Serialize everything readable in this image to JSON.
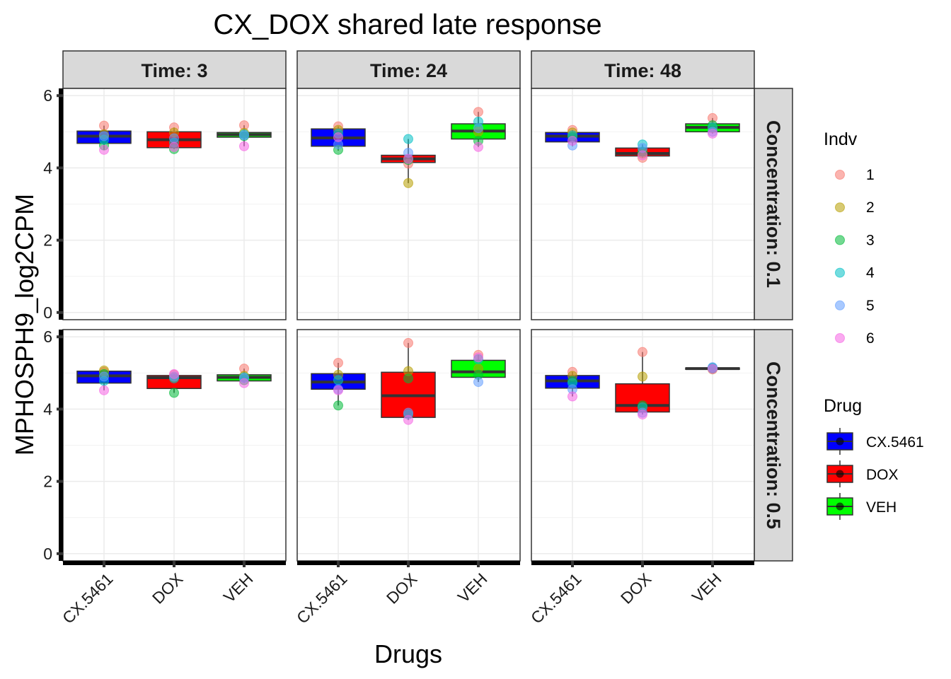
{
  "chart_data": {
    "type": "box",
    "title": "CX_DOX shared late response",
    "xlabel": "Drugs",
    "ylabel": "MPHOSPH9_log2CPM",
    "ylim": [
      -0.2,
      6.2
    ],
    "yticks": [
      0,
      2,
      4,
      6
    ],
    "categories": [
      "CX.5461",
      "DOX",
      "VEH"
    ],
    "grid": true,
    "facet_cols": {
      "name": "Time",
      "labels": [
        "Time: 3",
        "Time: 24",
        "Time: 48"
      ]
    },
    "facet_rows": {
      "name": "Concentration",
      "labels": [
        "Concentration: 0.1",
        "Concentration: 0.5"
      ]
    },
    "drug_colors": {
      "CX.5461": "#0000FF",
      "DOX": "#FF0000",
      "VEH": "#00FF00"
    },
    "indv_colors": {
      "1": "#F8766D",
      "2": "#B79F00",
      "3": "#00BA38",
      "4": "#00BFC4",
      "5": "#619CFF",
      "6": "#F564E3"
    },
    "panels": [
      {
        "row": 0,
        "col": 0,
        "boxes": [
          {
            "drug": "CX.5461",
            "whisker_low": 4.5,
            "q1": 4.68,
            "median": 4.88,
            "q3": 5.02,
            "whisker_high": 5.17,
            "points": {
              "1": 5.17,
              "2": 4.93,
              "3": 4.62,
              "4": 4.78,
              "5": 4.88,
              "6": 4.5
            }
          },
          {
            "drug": "DOX",
            "whisker_low": 4.52,
            "q1": 4.56,
            "median": 4.78,
            "q3": 5.0,
            "whisker_high": 5.12,
            "points": {
              "1": 5.12,
              "2": 4.98,
              "3": 4.52,
              "4": 4.7,
              "5": 4.82,
              "6": 4.58
            }
          },
          {
            "drug": "VEH",
            "whisker_low": 4.6,
            "q1": 4.85,
            "median": 4.92,
            "q3": 4.98,
            "whisker_high": 5.18,
            "points": {
              "1": 5.18,
              "2": 4.97,
              "3": 4.88,
              "4": 4.93,
              "5": 4.9,
              "6": 4.6
            }
          }
        ]
      },
      {
        "row": 0,
        "col": 1,
        "boxes": [
          {
            "drug": "CX.5461",
            "whisker_low": 4.48,
            "q1": 4.6,
            "median": 4.83,
            "q3": 5.08,
            "whisker_high": 5.15,
            "points": {
              "1": 5.15,
              "2": 5.05,
              "3": 4.5,
              "4": 4.95,
              "5": 4.65,
              "6": 4.85
            }
          },
          {
            "drug": "DOX",
            "whisker_low": 3.58,
            "q1": 4.15,
            "median": 4.25,
            "q3": 4.35,
            "whisker_high": 4.8,
            "points": {
              "1": 4.12,
              "2": 3.58,
              "3": 4.22,
              "4": 4.8,
              "5": 4.42,
              "6": 4.25
            }
          },
          {
            "drug": "VEH",
            "whisker_low": 4.58,
            "q1": 4.8,
            "median": 5.02,
            "q3": 5.22,
            "whisker_high": 5.55,
            "points": {
              "1": 5.55,
              "2": 5.0,
              "3": 4.75,
              "4": 5.28,
              "5": 5.1,
              "6": 4.58
            }
          }
        ]
      },
      {
        "row": 0,
        "col": 2,
        "boxes": [
          {
            "drug": "CX.5461",
            "whisker_low": 4.6,
            "q1": 4.72,
            "median": 4.88,
            "q3": 4.98,
            "whisker_high": 5.05,
            "points": {
              "1": 5.05,
              "2": 4.98,
              "3": 4.85,
              "4": 4.9,
              "5": 4.62,
              "6": 4.75
            }
          },
          {
            "drug": "DOX",
            "whisker_low": 4.28,
            "q1": 4.33,
            "median": 4.4,
            "q3": 4.55,
            "whisker_high": 4.65,
            "points": {
              "1": 4.28,
              "2": 4.4,
              "3": 4.45,
              "4": 4.65,
              "5": 4.55,
              "6": 4.35
            }
          },
          {
            "drug": "VEH",
            "whisker_low": 4.95,
            "q1": 5.0,
            "median": 5.12,
            "q3": 5.22,
            "whisker_high": 5.38,
            "points": {
              "1": 5.38,
              "2": 5.1,
              "3": 5.18,
              "4": 5.12,
              "5": 5.0,
              "6": 4.95
            }
          }
        ]
      },
      {
        "row": 1,
        "col": 0,
        "boxes": [
          {
            "drug": "CX.5461",
            "whisker_low": 4.52,
            "q1": 4.72,
            "median": 4.92,
            "q3": 5.05,
            "whisker_high": 5.07,
            "points": {
              "1": 5.03,
              "2": 5.07,
              "3": 4.97,
              "4": 4.78,
              "5": 4.9,
              "6": 4.52
            }
          },
          {
            "drug": "DOX",
            "whisker_low": 4.45,
            "q1": 4.57,
            "median": 4.87,
            "q3": 4.93,
            "whisker_high": 4.97,
            "points": {
              "1": 4.95,
              "2": 4.88,
              "3": 4.45,
              "4": 4.85,
              "5": 4.9,
              "6": 4.97
            }
          },
          {
            "drug": "VEH",
            "whisker_low": 4.72,
            "q1": 4.78,
            "median": 4.88,
            "q3": 4.95,
            "whisker_high": 5.12,
            "points": {
              "1": 5.12,
              "2": 4.92,
              "3": 4.8,
              "4": 4.88,
              "5": 4.85,
              "6": 4.72
            }
          }
        ]
      },
      {
        "row": 1,
        "col": 1,
        "boxes": [
          {
            "drug": "CX.5461",
            "whisker_low": 4.1,
            "q1": 4.55,
            "median": 4.75,
            "q3": 4.98,
            "whisker_high": 5.28,
            "points": {
              "1": 5.28,
              "2": 4.95,
              "3": 4.1,
              "4": 4.8,
              "5": 4.55,
              "6": 4.52
            }
          },
          {
            "drug": "DOX",
            "whisker_low": 3.7,
            "q1": 3.77,
            "median": 4.37,
            "q3": 5.02,
            "whisker_high": 5.83,
            "points": {
              "1": 5.83,
              "2": 5.05,
              "3": 4.85,
              "4": 3.85,
              "5": 3.9,
              "6": 3.7
            }
          },
          {
            "drug": "VEH",
            "whisker_low": 4.75,
            "q1": 4.88,
            "median": 5.03,
            "q3": 5.35,
            "whisker_high": 5.5,
            "points": {
              "1": 5.5,
              "2": 5.12,
              "3": 4.95,
              "4": 5.38,
              "5": 4.75,
              "6": 5.43
            }
          }
        ]
      },
      {
        "row": 1,
        "col": 2,
        "boxes": [
          {
            "drug": "CX.5461",
            "whisker_low": 4.35,
            "q1": 4.58,
            "median": 4.78,
            "q3": 4.93,
            "whisker_high": 5.03,
            "points": {
              "1": 5.03,
              "2": 4.92,
              "3": 4.78,
              "4": 4.72,
              "5": 4.55,
              "6": 4.35
            }
          },
          {
            "drug": "DOX",
            "whisker_low": 3.85,
            "q1": 3.92,
            "median": 4.1,
            "q3": 4.7,
            "whisker_high": 5.58,
            "points": {
              "1": 5.58,
              "2": 4.9,
              "3": 4.1,
              "4": 4.05,
              "5": 3.9,
              "6": 3.85
            }
          },
          {
            "drug": "VEH",
            "whisker_low": 5.08,
            "q1": 5.1,
            "median": 5.12,
            "q3": 5.14,
            "whisker_high": 5.16,
            "points": {
              "1": 5.12,
              "2": 5.1,
              "3": 5.14,
              "4": 5.13,
              "5": 5.16,
              "6": 5.11
            }
          }
        ]
      }
    ],
    "legends": [
      {
        "title": "Indv",
        "type": "points",
        "placement": "right",
        "entries": [
          "1",
          "2",
          "3",
          "4",
          "5",
          "6"
        ]
      },
      {
        "title": "Drug",
        "type": "boxes",
        "placement": "right",
        "entries": [
          "CX.5461",
          "DOX",
          "VEH"
        ]
      }
    ]
  }
}
